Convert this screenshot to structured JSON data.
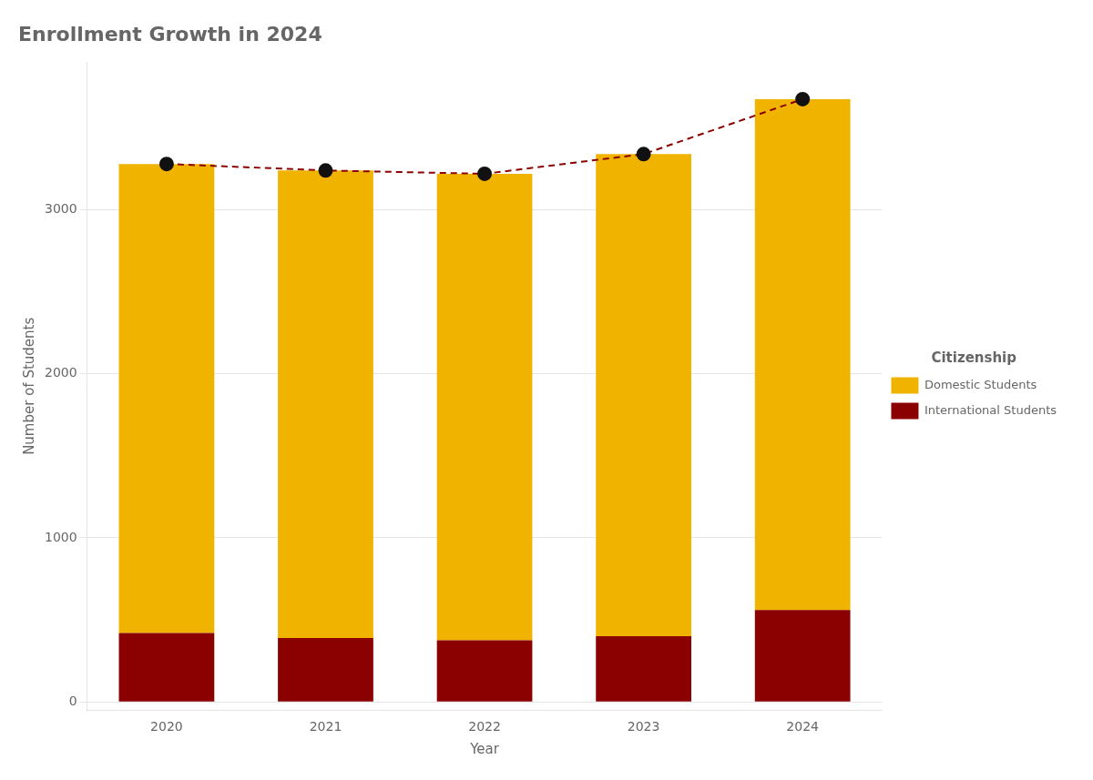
{
  "chart_data": {
    "type": "bar",
    "title": "Enrollment Growth in 2024",
    "x_label": "Year",
    "y_label": "Number of Students",
    "categories": [
      "2020",
      "2021",
      "2022",
      "2023",
      "2024"
    ],
    "stacked": true,
    "series": [
      {
        "name": "International Students",
        "color": "#8B0000",
        "values": [
          420,
          390,
          375,
          400,
          560
        ]
      },
      {
        "name": "Domestic Students",
        "color": "#F0B400",
        "values": [
          2860,
          2850,
          2845,
          2940,
          3115
        ]
      },
      {
        "type": "line",
        "color": "#8B0000",
        "line_style": "dashed",
        "values": [
          3280,
          3240,
          3220,
          3340,
          3675
        ]
      },
      {
        "type": "scatter",
        "color": "#111111",
        "marker": "circle",
        "values": [
          3280,
          3240,
          3220,
          3340,
          3675
        ]
      }
    ],
    "ylim": [
      -50,
      3900
    ],
    "yticks": [
      0,
      1000,
      2000,
      3000
    ],
    "grid": true,
    "legend": "right",
    "legend_title": "Citizenship"
  }
}
